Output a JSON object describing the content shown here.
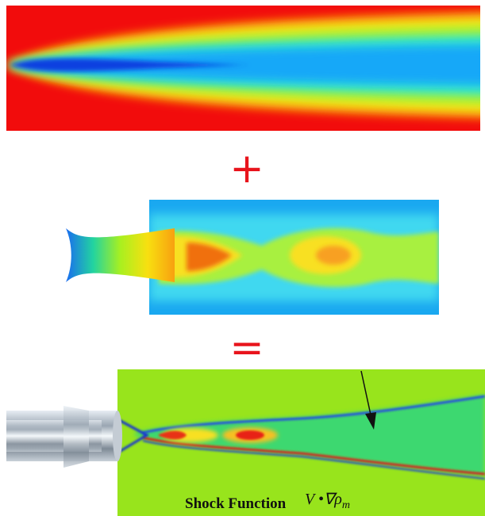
{
  "operators": {
    "plus": "+",
    "equals": "="
  },
  "caption": {
    "label": "Shock Function",
    "formula": "V •∇ρ",
    "subscript": "m"
  }
}
